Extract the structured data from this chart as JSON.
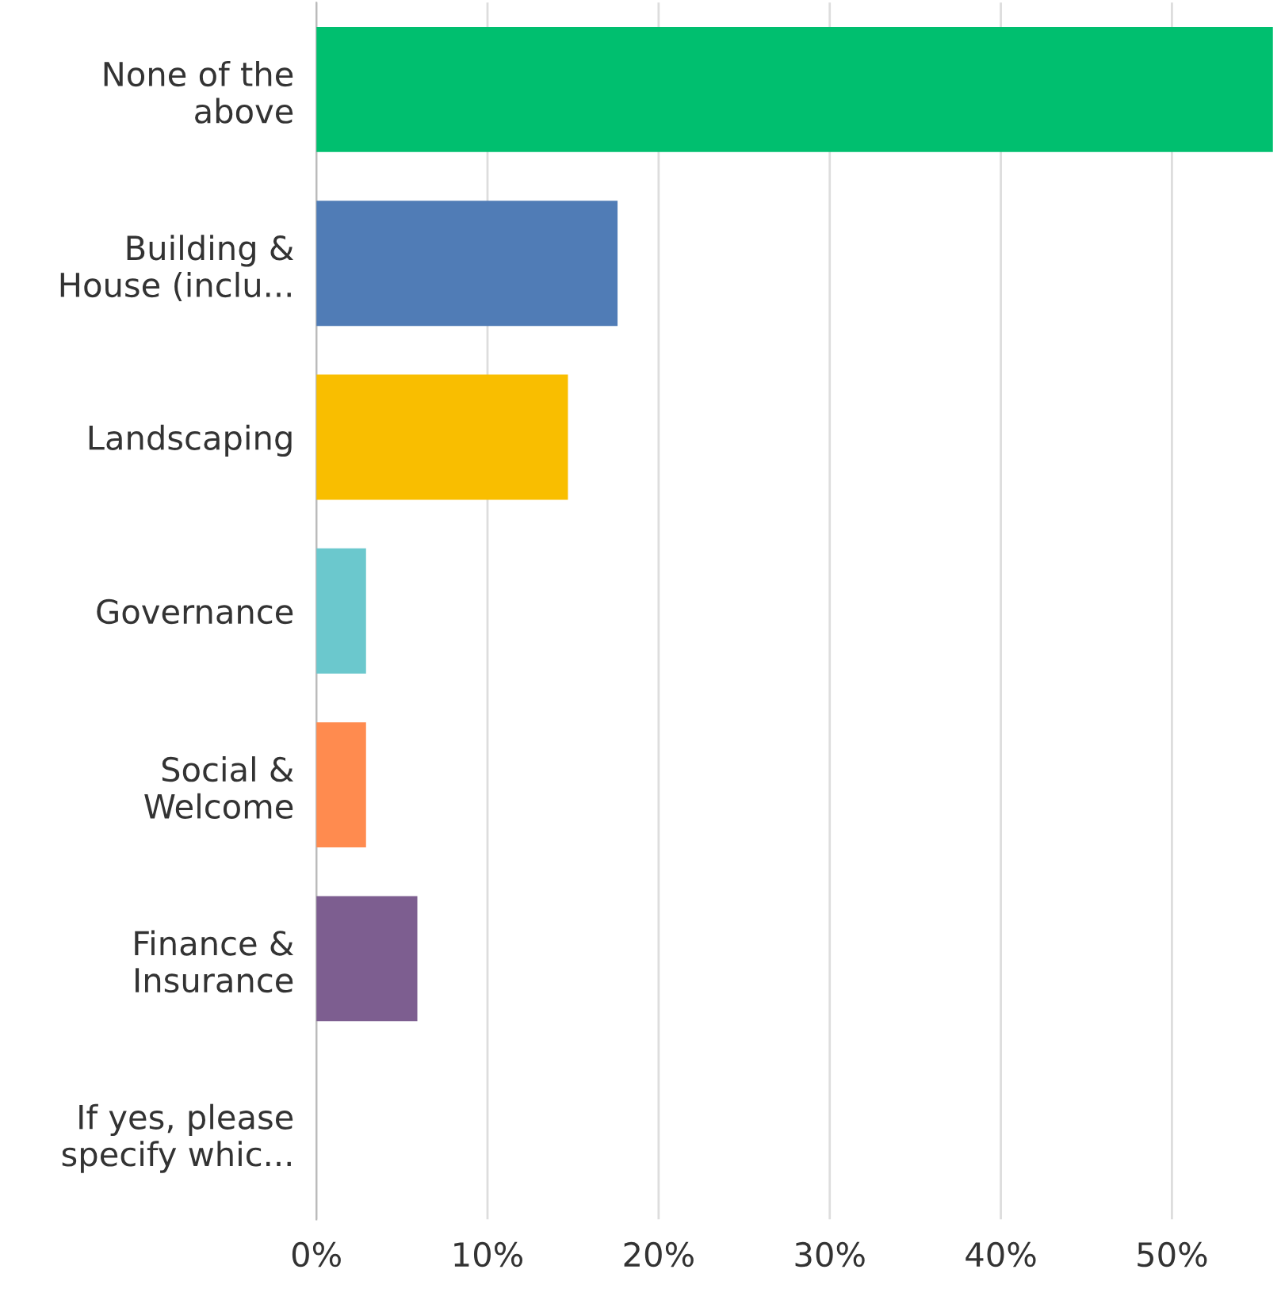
{
  "chart_data": {
    "type": "bar",
    "orientation": "horizontal",
    "categories": [
      "None of the\nabove",
      "Building &\nHouse (inclu...",
      "Landscaping",
      "Governance",
      "Social &\nWelcome",
      "Finance &\nInsurance",
      "If yes, please\nspecify whic..."
    ],
    "values": [
      55.9,
      17.6,
      14.7,
      2.9,
      2.9,
      5.9,
      0
    ],
    "colors": [
      "#00bf6f",
      "#507cb6",
      "#f9be00",
      "#6bc8cd",
      "#ff8b4f",
      "#7d5e90",
      null
    ],
    "xlim": [
      0,
      56
    ],
    "xticks": [
      {
        "value": 0,
        "label": "0%"
      },
      {
        "value": 10,
        "label": "10%"
      },
      {
        "value": 20,
        "label": "20%"
      },
      {
        "value": 30,
        "label": "30%"
      },
      {
        "value": 40,
        "label": "40%"
      },
      {
        "value": 50,
        "label": "50%"
      }
    ],
    "grid": "x",
    "legend": false
  }
}
